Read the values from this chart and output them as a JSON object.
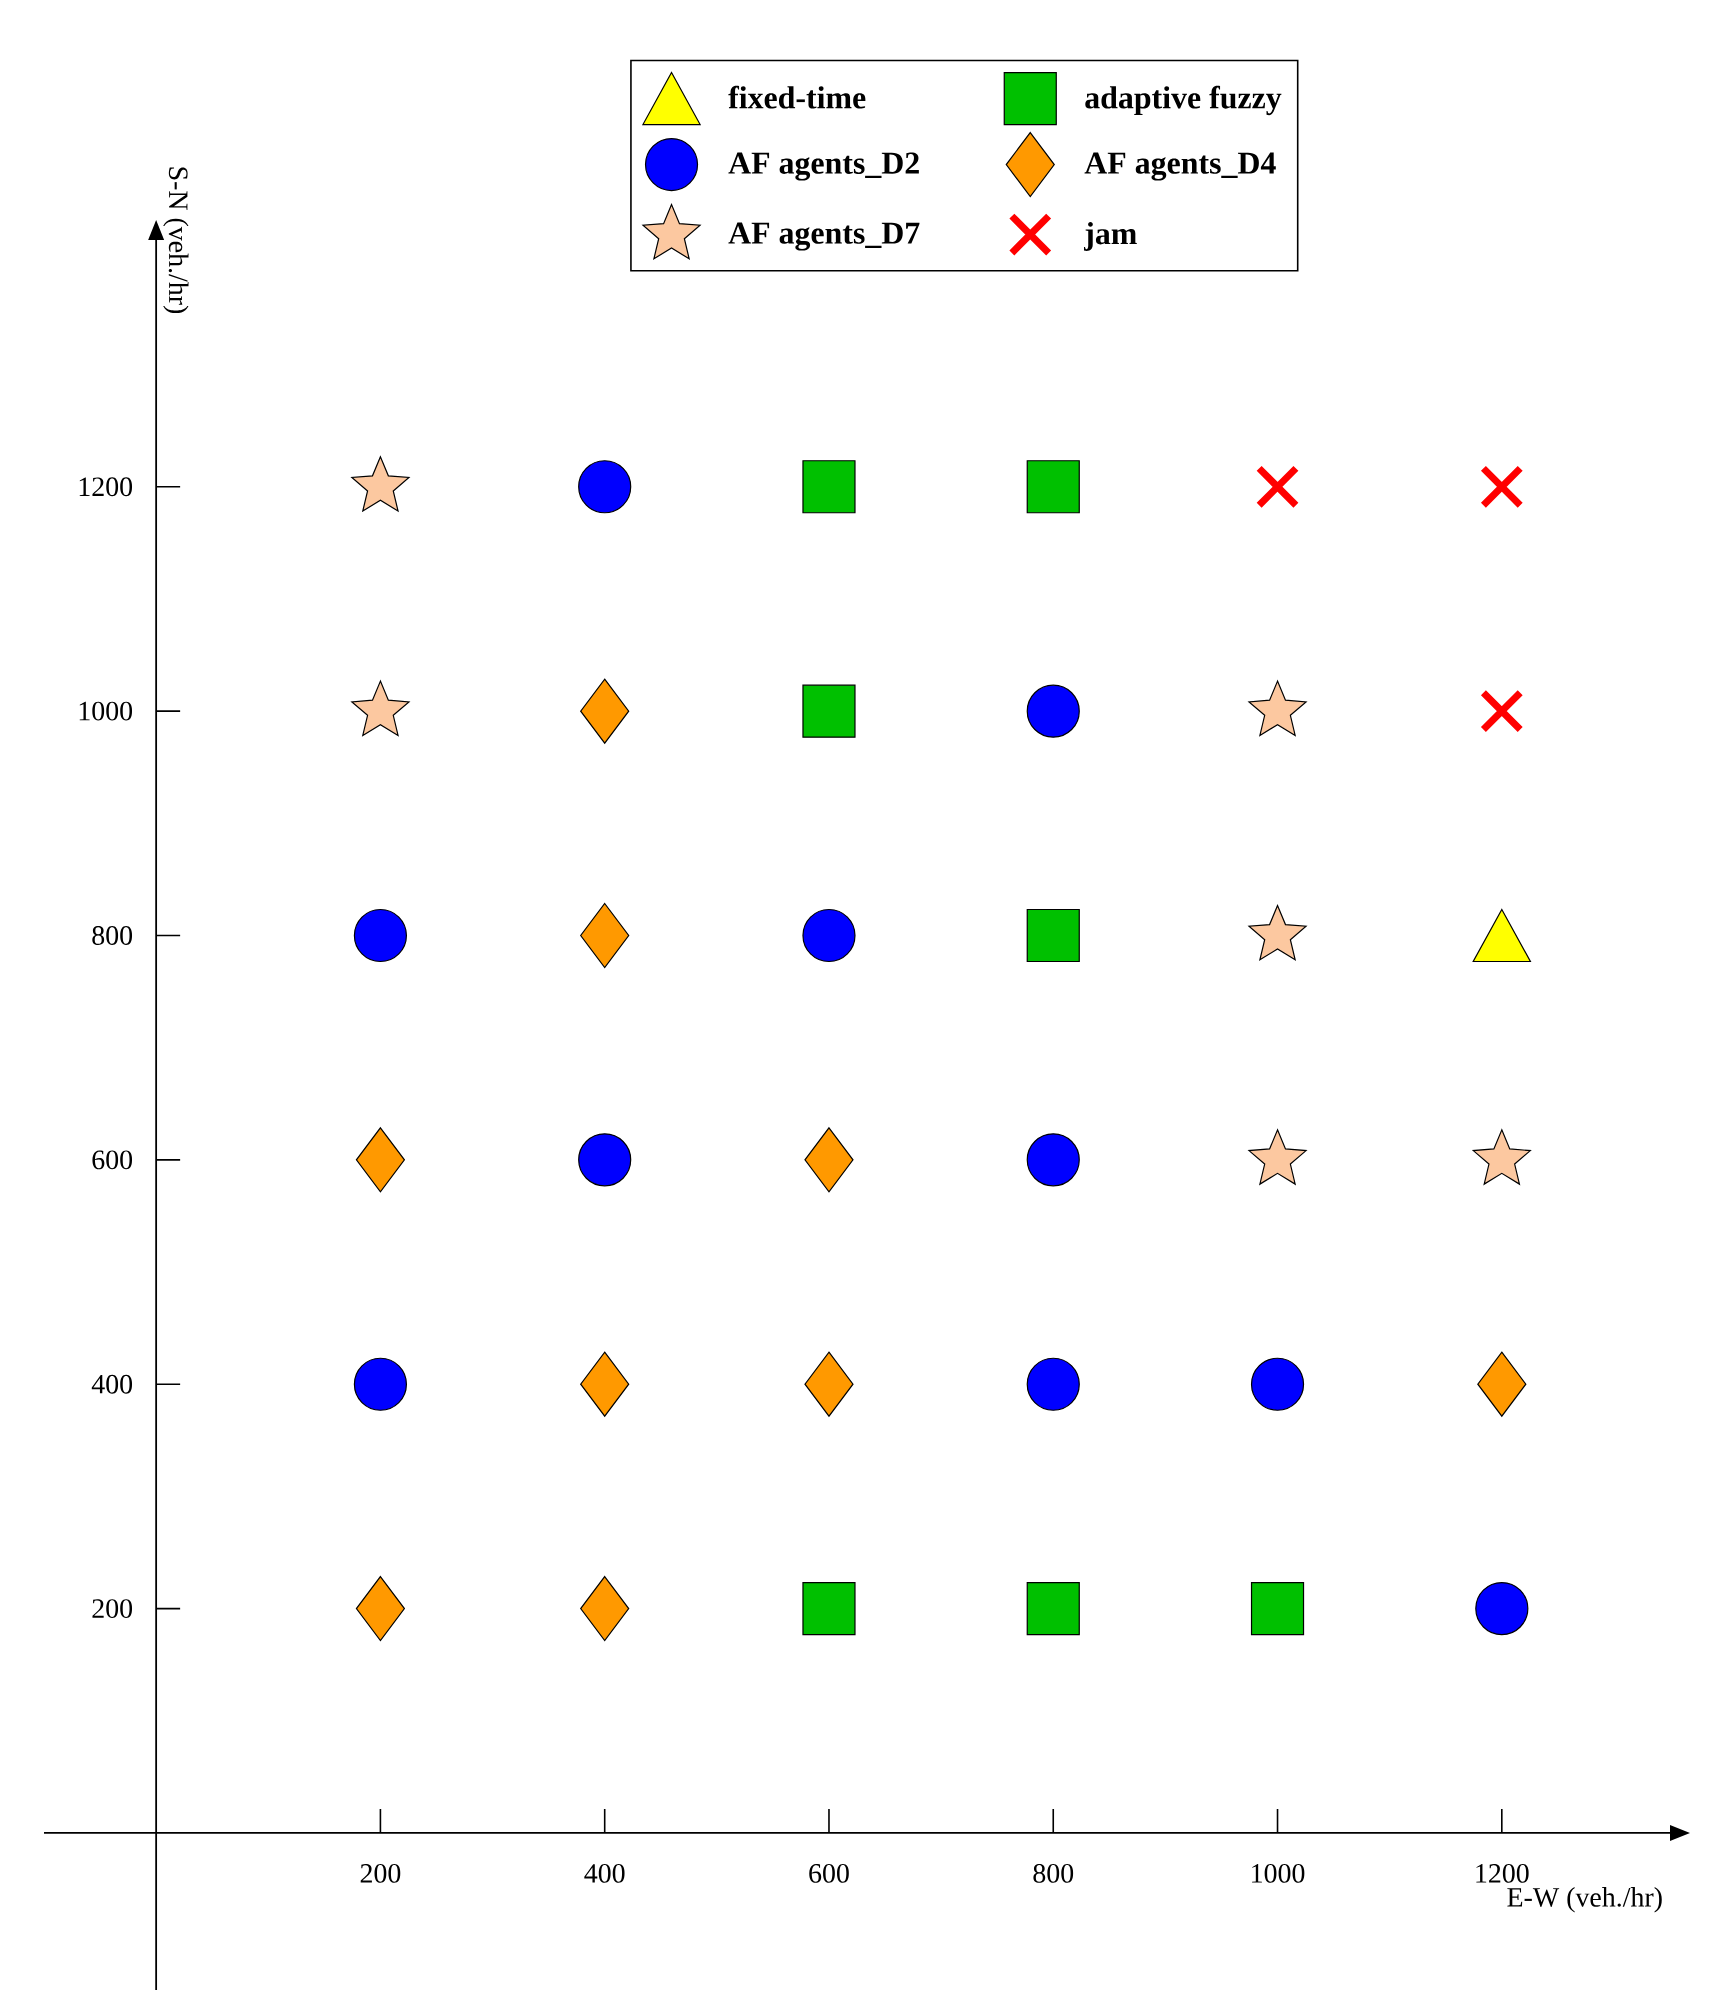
{
  "chart_data": {
    "type": "scatter",
    "xlabel": "E-W (veh./hr)",
    "ylabel": "S-N (veh./hr)",
    "xlim": [
      -100,
      1350
    ],
    "ylim": [
      -140,
      1420
    ],
    "xticks": [
      200,
      400,
      600,
      800,
      1000,
      1200
    ],
    "yticks": [
      200,
      400,
      600,
      800,
      1000,
      1200
    ],
    "legend": "top",
    "series": [
      {
        "name": "fixed-time",
        "color": "#ffff00",
        "marker": "triangle",
        "x": [
          1200
        ],
        "values": [
          800
        ]
      },
      {
        "name": "adaptive fuzzy",
        "color": "#00c000",
        "marker": "square",
        "x": [
          600,
          800,
          600,
          800,
          600,
          800,
          1000
        ],
        "values": [
          1200,
          1200,
          1000,
          800,
          200,
          200,
          200
        ]
      },
      {
        "name": "AF agents_D2",
        "color": "#0000ff",
        "marker": "circle",
        "x": [
          400,
          800,
          200,
          600,
          400,
          800,
          200,
          800,
          1000,
          1200
        ],
        "values": [
          1200,
          1000,
          800,
          800,
          600,
          600,
          400,
          400,
          400,
          200
        ]
      },
      {
        "name": "AF agents_D4",
        "color": "#ff9900",
        "marker": "diamond",
        "x": [
          400,
          400,
          200,
          600,
          400,
          600,
          1200,
          200,
          400
        ],
        "values": [
          1000,
          800,
          600,
          600,
          400,
          400,
          400,
          200,
          200
        ]
      },
      {
        "name": "AF agents_D7",
        "color": "#fcc8a0",
        "marker": "star",
        "x": [
          200,
          200,
          1000,
          1000,
          1000,
          1200
        ],
        "values": [
          1200,
          1000,
          1000,
          800,
          600,
          600
        ]
      },
      {
        "name": "jam",
        "color": "#ff0000",
        "marker": "cross",
        "x": [
          1000,
          1200,
          1200
        ],
        "values": [
          1200,
          1200,
          1000
        ]
      }
    ]
  }
}
